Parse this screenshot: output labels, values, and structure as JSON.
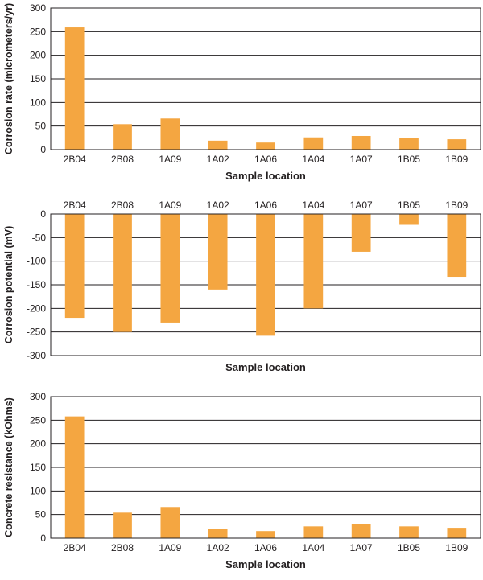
{
  "chart_data": [
    {
      "type": "bar",
      "categories": [
        "2B04",
        "2B08",
        "1A09",
        "1A02",
        "1A06",
        "1A04",
        "1A07",
        "1B05",
        "1B09"
      ],
      "values": [
        259,
        54,
        66,
        19,
        15,
        26,
        29,
        25,
        22
      ],
      "xlabel": "Sample location",
      "ylabel": "Corrosion rate (micrometers/yr)",
      "ylim": [
        0,
        300
      ],
      "yticks": [
        "0",
        "50",
        "100",
        "150",
        "200",
        "250",
        "300"
      ],
      "category_position": "bottom",
      "grid": true,
      "bar_color": "#f4a641"
    },
    {
      "type": "bar",
      "categories": [
        "2B04",
        "2B08",
        "1A09",
        "1A02",
        "1A06",
        "1A04",
        "1A07",
        "1B05",
        "1B09"
      ],
      "values": [
        -220,
        -250,
        -230,
        -160,
        -258,
        -200,
        -80,
        -23,
        -133
      ],
      "xlabel": "Sample location",
      "ylabel": "Corrosion potential (mV)",
      "ylim": [
        -300,
        0
      ],
      "yticks": [
        "0",
        "-50",
        "-100",
        "-150",
        "-200",
        "-250",
        "-300"
      ],
      "category_position": "top",
      "grid": true,
      "bar_color": "#f4a641"
    },
    {
      "type": "bar",
      "categories": [
        "2B04",
        "2B08",
        "1A09",
        "1A02",
        "1A06",
        "1A04",
        "1A07",
        "1B05",
        "1B09"
      ],
      "values": [
        258,
        54,
        66,
        19,
        15,
        25,
        29,
        25,
        22
      ],
      "xlabel": "Sample location",
      "ylabel": "Concrete resistance (kOhms)",
      "ylim": [
        0,
        300
      ],
      "yticks": [
        "0",
        "50",
        "100",
        "150",
        "200",
        "250",
        "300"
      ],
      "category_position": "bottom",
      "grid": true,
      "bar_color": "#f4a641"
    }
  ]
}
